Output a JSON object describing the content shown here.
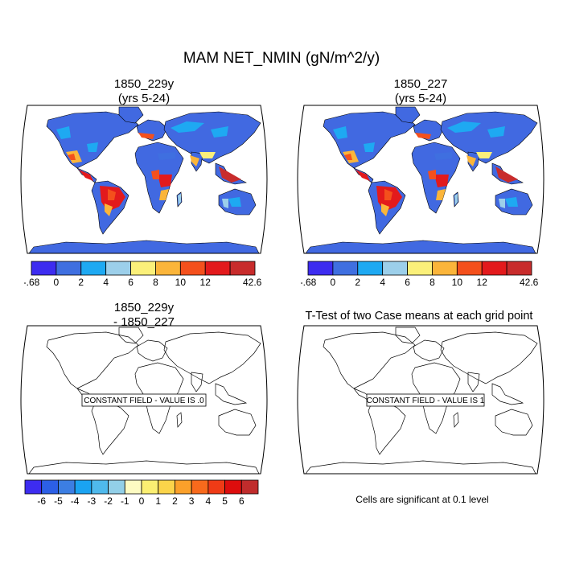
{
  "figure": {
    "title": "MAM NET_NMIN (gN/m^2/y)"
  },
  "panels": [
    {
      "title_line1": "1850_229y",
      "title_line2": "(yrs 5-24)"
    },
    {
      "title_line1": "1850_227",
      "title_line2": "(yrs 5-24)"
    },
    {
      "title_line1": "1850_229y",
      "title_line2": "- 1850_227",
      "constant_label": "CONSTANT FIELD - VALUE IS .0"
    },
    {
      "title_line1": "T-Test of two Case means at each grid point",
      "constant_label": "CONSTANT FIELD - VALUE IS 1"
    }
  ],
  "significance_note": "Cells are significant at 0.1 level",
  "colors": {
    "ocean": "#ffffff",
    "land_base": "#4169e1",
    "coast": "#000000",
    "antarctica": "#4169e1"
  },
  "chart_data": [
    {
      "type": "heatmap",
      "title": "1850_229y (yrs 5-24)",
      "projection": "robinson",
      "colorbar": {
        "tick_labels": [
          "-.68",
          "0",
          "2",
          "4",
          "6",
          "8",
          "10",
          "12",
          "42.65"
        ],
        "colors": [
          "#3d2cf0",
          "#3f6fe0",
          "#1ea9f2",
          "#9ccfea",
          "#fbf07a",
          "#fbb53a",
          "#f4501c",
          "#e31a1c",
          "#c82c2c"
        ]
      }
    },
    {
      "type": "heatmap",
      "title": "1850_227 (yrs 5-24)",
      "projection": "robinson",
      "colorbar": {
        "tick_labels": [
          "-.68",
          "0",
          "2",
          "4",
          "6",
          "8",
          "10",
          "12",
          "42.65"
        ],
        "colors": [
          "#3d2cf0",
          "#3f6fe0",
          "#1ea9f2",
          "#9ccfea",
          "#fbf07a",
          "#fbb53a",
          "#f4501c",
          "#e31a1c",
          "#c82c2c"
        ]
      }
    },
    {
      "type": "heatmap",
      "title": "1850_229y - 1850_227",
      "projection": "robinson",
      "constant_value": 0,
      "colorbar": {
        "tick_labels": [
          "-6",
          "-5",
          "-4",
          "-3",
          "-2",
          "-1",
          "0",
          "1",
          "2",
          "3",
          "4",
          "5",
          "6"
        ],
        "colors": [
          "#3d2cf0",
          "#2c5fe6",
          "#3c7ee3",
          "#1aa3f2",
          "#4fb9ec",
          "#92cfe8",
          "#fdfbc2",
          "#fbef72",
          "#fbd44a",
          "#fba02a",
          "#f86a1c",
          "#ef3b16",
          "#dd0d0d",
          "#c02c2c"
        ]
      }
    },
    {
      "type": "heatmap",
      "title": "T-Test of two Case means at each grid point",
      "projection": "robinson",
      "constant_value": 1
    }
  ]
}
